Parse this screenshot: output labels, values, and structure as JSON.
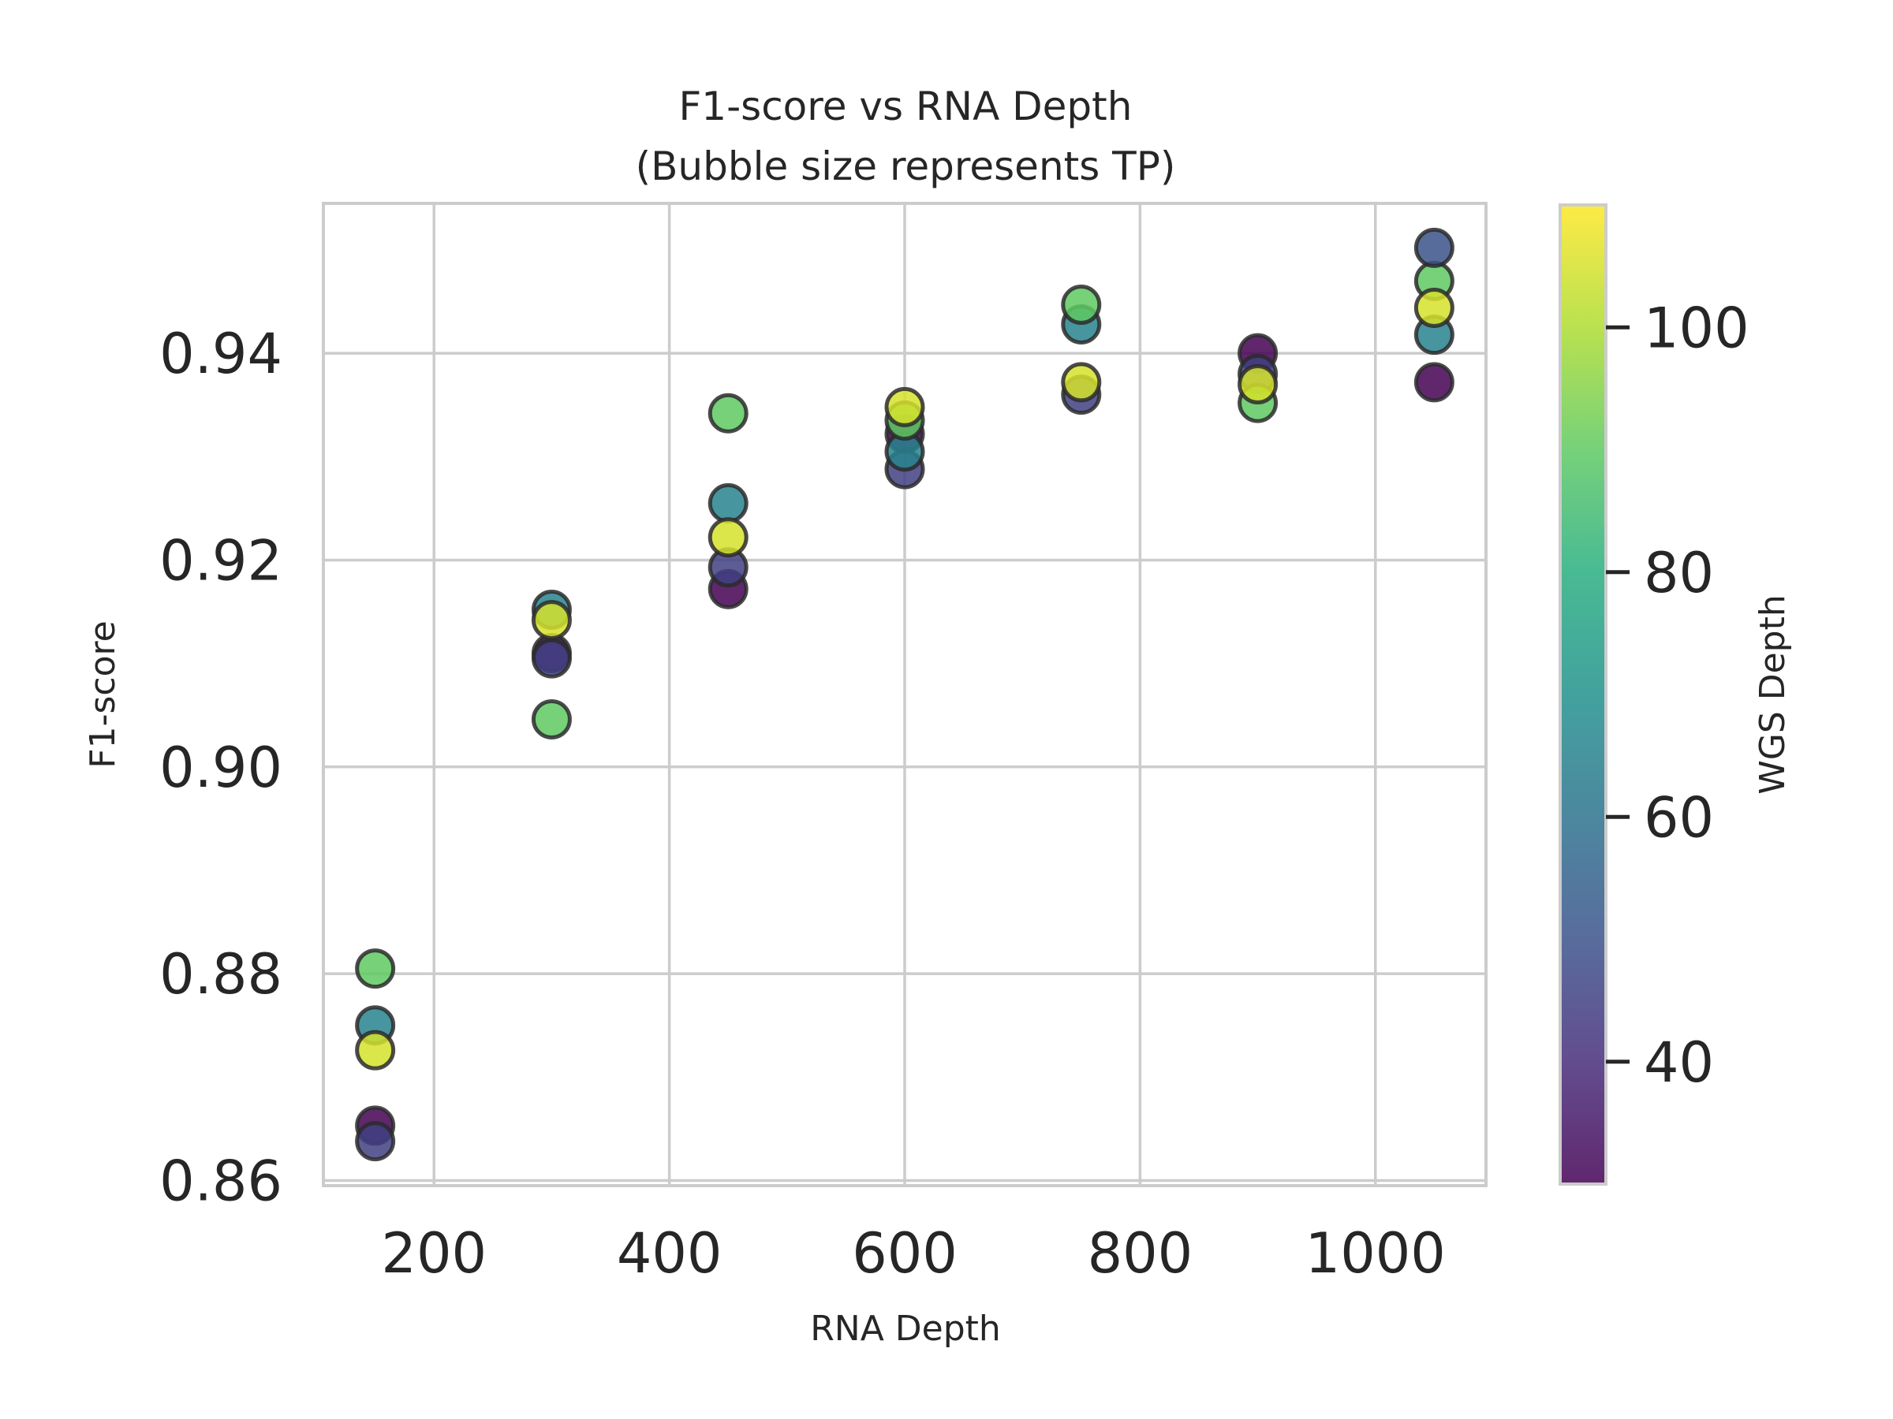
{
  "chart_data": {
    "type": "scatter",
    "title": "F1-score vs RNA Depth",
    "subtitle": "(Bubble size represents TP)",
    "xlabel": "RNA Depth",
    "ylabel": "F1-score",
    "xlim": [
      106,
      1094
    ],
    "ylim": [
      0.8595,
      0.9545
    ],
    "xticks": [
      200,
      400,
      600,
      800,
      1000
    ],
    "xtick_labels": [
      "200",
      "400",
      "600",
      "800",
      "1000"
    ],
    "yticks": [
      0.86,
      0.88,
      0.9,
      0.92,
      0.94
    ],
    "ytick_labels": [
      "0.86",
      "0.88",
      "0.90",
      "0.92",
      "0.94"
    ],
    "grid": true,
    "colormap": "viridis",
    "colorbar": {
      "label": "WGS Depth",
      "range": [
        30,
        110
      ],
      "ticks": [
        40,
        60,
        80,
        100
      ],
      "tick_labels": [
        "40",
        "60",
        "80",
        "100"
      ]
    },
    "points": [
      {
        "x": 150,
        "y": 0.8805,
        "wgs": 90
      },
      {
        "x": 150,
        "y": 0.875,
        "wgs": 65
      },
      {
        "x": 150,
        "y": 0.8726,
        "wgs": 105
      },
      {
        "x": 150,
        "y": 0.8653,
        "wgs": 30
      },
      {
        "x": 150,
        "y": 0.8638,
        "wgs": 45
      },
      {
        "x": 300,
        "y": 0.9152,
        "wgs": 65
      },
      {
        "x": 300,
        "y": 0.911,
        "wgs": 30
      },
      {
        "x": 300,
        "y": 0.9105,
        "wgs": 45
      },
      {
        "x": 300,
        "y": 0.9142,
        "wgs": 105
      },
      {
        "x": 300,
        "y": 0.9046,
        "wgs": 90
      },
      {
        "x": 450,
        "y": 0.9342,
        "wgs": 90
      },
      {
        "x": 450,
        "y": 0.9255,
        "wgs": 65
      },
      {
        "x": 450,
        "y": 0.9172,
        "wgs": 30
      },
      {
        "x": 450,
        "y": 0.9193,
        "wgs": 45
      },
      {
        "x": 450,
        "y": 0.9222,
        "wgs": 105
      },
      {
        "x": 600,
        "y": 0.9322,
        "wgs": 30
      },
      {
        "x": 600,
        "y": 0.9288,
        "wgs": 45
      },
      {
        "x": 600,
        "y": 0.9305,
        "wgs": 65
      },
      {
        "x": 600,
        "y": 0.9335,
        "wgs": 90
      },
      {
        "x": 600,
        "y": 0.9348,
        "wgs": 105
      },
      {
        "x": 750,
        "y": 0.936,
        "wgs": 45
      },
      {
        "x": 750,
        "y": 0.9428,
        "wgs": 65
      },
      {
        "x": 750,
        "y": 0.9447,
        "wgs": 90
      },
      {
        "x": 750,
        "y": 0.9372,
        "wgs": 105
      },
      {
        "x": 900,
        "y": 0.94,
        "wgs": 30
      },
      {
        "x": 900,
        "y": 0.938,
        "wgs": 45
      },
      {
        "x": 900,
        "y": 0.9352,
        "wgs": 90
      },
      {
        "x": 900,
        "y": 0.937,
        "wgs": 105
      },
      {
        "x": 1050,
        "y": 0.9372,
        "wgs": 30
      },
      {
        "x": 1050,
        "y": 0.9418,
        "wgs": 65
      },
      {
        "x": 1050,
        "y": 0.947,
        "wgs": 90
      },
      {
        "x": 1050,
        "y": 0.9502,
        "wgs": 50
      },
      {
        "x": 1050,
        "y": 0.9444,
        "wgs": 105
      }
    ]
  }
}
